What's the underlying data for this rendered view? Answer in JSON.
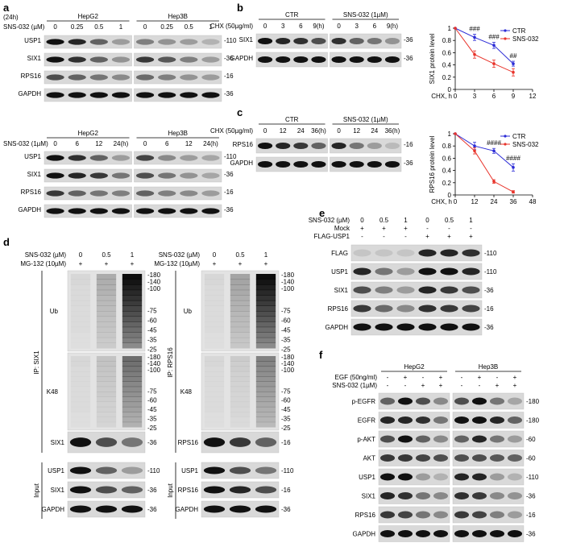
{
  "panels": {
    "a": {
      "label": "a",
      "top": {
        "time": "(24h)",
        "treatment": "SNS-032 (µM)",
        "groups": [
          "HepG2",
          "Hep3B"
        ],
        "lanes": [
          "0",
          "0.25",
          "0.5",
          "1",
          "0",
          "0.25",
          "0.5",
          "1"
        ],
        "rows": [
          {
            "name": "USP1",
            "mw": "-110",
            "bands": [
              1.0,
              0.9,
              0.6,
              0.3,
              0.45,
              0.35,
              0.3,
              0.2
            ]
          },
          {
            "name": "SIX1",
            "mw": "-36",
            "bands": [
              1.0,
              0.85,
              0.6,
              0.35,
              0.8,
              0.65,
              0.45,
              0.3
            ]
          },
          {
            "name": "RPS16",
            "mw": "-16",
            "bands": [
              0.7,
              0.6,
              0.5,
              0.4,
              0.55,
              0.45,
              0.35,
              0.3
            ]
          },
          {
            "name": "GAPDH",
            "mw": "-36",
            "bands": [
              1.0,
              1.0,
              1.0,
              1.0,
              1.0,
              1.0,
              1.0,
              1.0
            ]
          }
        ]
      },
      "bottom": {
        "treatment": "SNS-032 (1µM)",
        "groups": [
          "HepG2",
          "Hep3B"
        ],
        "lanes": [
          "0",
          "6",
          "12",
          "24(h)",
          "0",
          "6",
          "12",
          "24(h)"
        ],
        "rows": [
          {
            "name": "USP1",
            "mw": "-110",
            "bands": [
              1.0,
              0.85,
              0.6,
              0.3,
              0.75,
              0.4,
              0.3,
              0.25
            ]
          },
          {
            "name": "SIX1",
            "mw": "-36",
            "bands": [
              1.0,
              0.9,
              0.8,
              0.5,
              0.7,
              0.5,
              0.35,
              0.25
            ]
          },
          {
            "name": "RPS16",
            "mw": "-16",
            "bands": [
              0.8,
              0.6,
              0.5,
              0.45,
              0.6,
              0.45,
              0.4,
              0.3
            ]
          },
          {
            "name": "GAPDH",
            "mw": "-36",
            "bands": [
              1.0,
              1.0,
              1.0,
              1.0,
              1.0,
              1.0,
              1.0,
              1.0
            ]
          }
        ]
      }
    },
    "b": {
      "label": "b",
      "treatment": "CHX (50µg/ml)",
      "groups": [
        "CTR",
        "SNS-032 (1µM)"
      ],
      "lanes": [
        "0",
        "3",
        "6",
        "9(h)",
        "0",
        "3",
        "6",
        "9(h)"
      ],
      "rows": [
        {
          "name": "SIX1",
          "mw": "-36",
          "bands": [
            1.0,
            0.9,
            0.85,
            0.7,
            0.85,
            0.6,
            0.5,
            0.35
          ]
        },
        {
          "name": "GAPDH",
          "mw": "-36",
          "bands": [
            1.0,
            1.0,
            1.0,
            1.0,
            1.0,
            1.0,
            1.0,
            1.0
          ]
        }
      ]
    },
    "c": {
      "label": "c",
      "treatment": "CHX (50µg/ml)",
      "groups": [
        "CTR",
        "SNS-032 (1µM)"
      ],
      "lanes": [
        "0",
        "12",
        "24",
        "36(h)",
        "0",
        "12",
        "24",
        "36(h)"
      ],
      "rows": [
        {
          "name": "RPS16",
          "mw": "-16",
          "bands": [
            1.0,
            0.9,
            0.8,
            0.6,
            0.9,
            0.5,
            0.3,
            0.15
          ]
        },
        {
          "name": "GAPDH",
          "mw": "-36",
          "bands": [
            1.0,
            1.0,
            1.0,
            1.0,
            1.0,
            1.0,
            1.0,
            1.0
          ]
        }
      ]
    },
    "d": {
      "label": "d",
      "blots": [
        {
          "ip_label": "IP: SIX1",
          "treatments": [
            "SNS-032 (µM)",
            "MG-132 (10µM)"
          ],
          "sns_values": [
            "0",
            "0.5",
            "1"
          ],
          "mg_values": [
            "+",
            "+",
            "+"
          ],
          "ip_rows": [
            {
              "name": "Ub",
              "smear": [
                0.05,
                0.25,
                1.0
              ]
            },
            {
              "name": "K48",
              "smear": [
                0.05,
                0.15,
                0.55
              ]
            },
            {
              "name": "SIX1",
              "mw": "-36",
              "bands": [
                1.0,
                0.7,
                0.5
              ]
            }
          ],
          "input_label": "Input",
          "input_rows": [
            {
              "name": "USP1",
              "mw": "-110",
              "bands": [
                1.0,
                0.6,
                0.3
              ]
            },
            {
              "name": "SIX1",
              "mw": "-36",
              "bands": [
                1.0,
                0.7,
                0.6
              ]
            },
            {
              "name": "GAPDH",
              "mw": "-36",
              "bands": [
                1.0,
                1.0,
                1.0
              ]
            }
          ]
        },
        {
          "ip_label": "IP: RPS16",
          "treatments": [
            "SNS-032 (µM)",
            "MG-132 (10µM)"
          ],
          "sns_values": [
            "0",
            "0.5",
            "1"
          ],
          "mg_values": [
            "+",
            "+",
            "+"
          ],
          "ip_rows": [
            {
              "name": "Ub",
              "smear": [
                0.05,
                0.3,
                1.0
              ]
            },
            {
              "name": "K48",
              "smear": [
                0.05,
                0.1,
                0.45
              ]
            },
            {
              "name": "RPS16",
              "mw": "-16",
              "bands": [
                1.0,
                0.8,
                0.6
              ]
            }
          ],
          "input_label": "Input",
          "input_rows": [
            {
              "name": "USP1",
              "mw": "-110",
              "bands": [
                1.0,
                0.7,
                0.5
              ]
            },
            {
              "name": "RPS16",
              "mw": "-16",
              "bands": [
                1.0,
                0.9,
                0.7
              ]
            },
            {
              "name": "GAPDH",
              "mw": "-36",
              "bands": [
                1.0,
                1.0,
                1.0
              ]
            }
          ]
        }
      ],
      "mw_ladder": [
        "-180",
        "-140",
        "-100",
        "-75",
        "-60",
        "-45",
        "-35",
        "-25"
      ]
    },
    "e": {
      "label": "e",
      "conditions": [
        {
          "name": "SNS-032 (µM)",
          "values": [
            "0",
            "0.5",
            "1",
            "0",
            "0.5",
            "1"
          ]
        },
        {
          "name": "Mock",
          "values": [
            "+",
            "+",
            "+",
            "-",
            "-",
            "-"
          ]
        },
        {
          "name": "FLAG-USP1",
          "values": [
            "-",
            "-",
            "-",
            "+",
            "+",
            "+"
          ]
        }
      ],
      "rows": [
        {
          "name": "FLAG",
          "mw": "-110",
          "bands": [
            0.1,
            0.1,
            0.1,
            0.9,
            0.9,
            0.85
          ]
        },
        {
          "name": "USP1",
          "mw": "-110",
          "bands": [
            0.9,
            0.5,
            0.3,
            1.0,
            1.0,
            0.9
          ]
        },
        {
          "name": "SIX1",
          "mw": "-36",
          "bands": [
            0.7,
            0.45,
            0.3,
            0.9,
            0.8,
            0.7
          ]
        },
        {
          "name": "RPS16",
          "mw": "-16",
          "bands": [
            0.8,
            0.55,
            0.4,
            0.85,
            0.8,
            0.75
          ]
        },
        {
          "name": "GAPDH",
          "mw": "-36",
          "bands": [
            1.0,
            1.0,
            1.0,
            1.0,
            1.0,
            1.0
          ]
        }
      ]
    },
    "f": {
      "label": "f",
      "groups": [
        "HepG2",
        "Hep3B"
      ],
      "conditions": [
        {
          "name": "EGF (50ng/ml)",
          "values": [
            "-",
            "+",
            "-",
            "+",
            "-",
            "+",
            "-",
            "+"
          ]
        },
        {
          "name": "SNS-032 (1µM)",
          "values": [
            "-",
            "-",
            "+",
            "+",
            "-",
            "-",
            "+",
            "+"
          ]
        }
      ],
      "rows": [
        {
          "name": "p-EGFR",
          "mw": "-180",
          "bands": [
            0.6,
            1.0,
            0.7,
            0.4,
            0.7,
            1.0,
            0.5,
            0.25
          ]
        },
        {
          "name": "EGFR",
          "mw": "-180",
          "bands": [
            0.9,
            0.9,
            0.85,
            0.5,
            1.0,
            1.0,
            0.9,
            0.6
          ]
        },
        {
          "name": "p-AKT",
          "mw": "-60",
          "bands": [
            0.7,
            1.0,
            0.6,
            0.4,
            0.6,
            0.9,
            0.5,
            0.3
          ]
        },
        {
          "name": "AKT",
          "mw": "-60",
          "bands": [
            0.8,
            0.8,
            0.75,
            0.7,
            0.7,
            0.7,
            0.65,
            0.6
          ]
        },
        {
          "name": "USP1",
          "mw": "-110",
          "bands": [
            1.0,
            1.0,
            0.3,
            0.2,
            0.9,
            0.9,
            0.3,
            0.2
          ]
        },
        {
          "name": "SIX1",
          "mw": "-36",
          "bands": [
            0.9,
            0.85,
            0.5,
            0.4,
            0.85,
            0.8,
            0.4,
            0.35
          ]
        },
        {
          "name": "RPS16",
          "mw": "-16",
          "bands": [
            0.8,
            0.75,
            0.5,
            0.4,
            0.8,
            0.75,
            0.45,
            0.3
          ]
        },
        {
          "name": "GAPDH",
          "mw": "-36",
          "bands": [
            1.0,
            1.0,
            1.0,
            1.0,
            1.0,
            1.0,
            1.0,
            1.0
          ]
        }
      ]
    }
  },
  "chart_data": [
    {
      "type": "line",
      "ylabel": "SIX1 protein level",
      "xlabel": "CHX, h",
      "xlim": [
        0,
        12
      ],
      "ylim": [
        0,
        1.0
      ],
      "x_ticks": [
        0,
        3,
        6,
        9,
        12
      ],
      "y_ticks": [
        0,
        0.2,
        0.4,
        0.6,
        0.8,
        1.0
      ],
      "x": [
        0,
        3,
        6,
        9
      ],
      "series": [
        {
          "name": "CTR",
          "color": "#2b2bd6",
          "values": [
            1.0,
            0.85,
            0.72,
            0.42
          ],
          "errors": [
            0.0,
            0.05,
            0.05,
            0.04
          ]
        },
        {
          "name": "SNS-032",
          "color": "#e8332a",
          "values": [
            1.0,
            0.57,
            0.42,
            0.28
          ],
          "errors": [
            0.0,
            0.06,
            0.06,
            0.06
          ]
        }
      ],
      "annotations": [
        {
          "x": 3,
          "text": "###"
        },
        {
          "x": 6,
          "text": "###"
        },
        {
          "x": 9,
          "text": "##"
        }
      ],
      "legend": "top-right"
    },
    {
      "type": "line",
      "ylabel": "RPS16 protein level",
      "xlabel": "CHX, h",
      "xlim": [
        0,
        48
      ],
      "ylim": [
        0,
        1.0
      ],
      "x_ticks": [
        0,
        12,
        24,
        36,
        48
      ],
      "y_ticks": [
        0,
        0.2,
        0.4,
        0.6,
        0.8,
        1.0
      ],
      "x": [
        0,
        12,
        24,
        36
      ],
      "series": [
        {
          "name": "CTR",
          "color": "#2b2bd6",
          "values": [
            1.0,
            0.8,
            0.72,
            0.45
          ],
          "errors": [
            0.0,
            0.06,
            0.04,
            0.06
          ]
        },
        {
          "name": "SNS-032",
          "color": "#e8332a",
          "values": [
            1.0,
            0.72,
            0.22,
            0.05
          ],
          "errors": [
            0.0,
            0.05,
            0.03,
            0.02
          ]
        }
      ],
      "annotations": [
        {
          "x": 24,
          "text": "####"
        },
        {
          "x": 36,
          "text": "####"
        }
      ],
      "legend": "top-right"
    }
  ]
}
